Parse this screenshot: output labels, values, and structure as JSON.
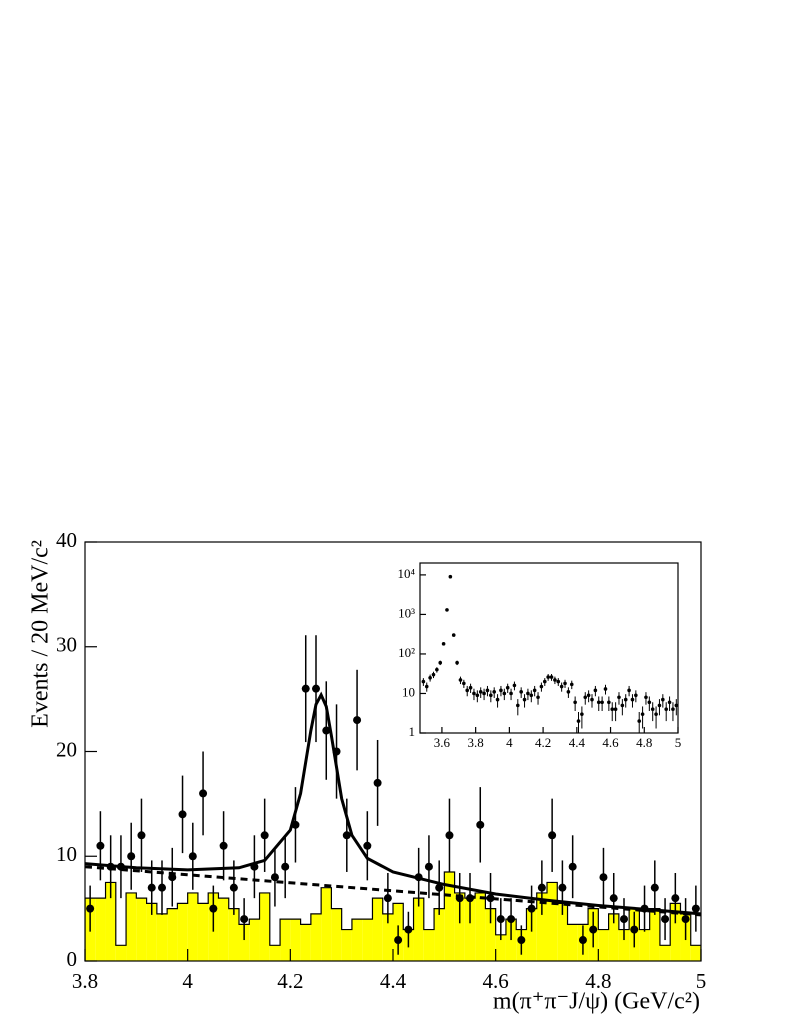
{
  "chart_data": [
    {
      "type": "errorbar",
      "x_label": "m(π⁺π⁻J/ψ) (GeV/c²)",
      "y_label": "Events / 20 MeV/c²",
      "xlim": [
        3.8,
        5.0
      ],
      "ylim": [
        0,
        40
      ],
      "xticks": [
        3.8,
        4,
        4.2,
        4.4,
        4.6,
        4.8,
        5
      ],
      "yticks": [
        0,
        10,
        20,
        30,
        40
      ],
      "x": [
        3.81,
        3.83,
        3.85,
        3.87,
        3.89,
        3.91,
        3.93,
        3.95,
        3.97,
        3.99,
        4.01,
        4.03,
        4.05,
        4.07,
        4.09,
        4.11,
        4.13,
        4.15,
        4.17,
        4.19,
        4.21,
        4.23,
        4.25,
        4.27,
        4.29,
        4.31,
        4.33,
        4.35,
        4.37,
        4.39,
        4.41,
        4.43,
        4.45,
        4.47,
        4.49,
        4.51,
        4.53,
        4.55,
        4.57,
        4.59,
        4.61,
        4.63,
        4.65,
        4.67,
        4.69,
        4.71,
        4.73,
        4.75,
        4.77,
        4.79,
        4.81,
        4.83,
        4.85,
        4.87,
        4.89,
        4.91,
        4.93,
        4.95,
        4.97,
        4.99
      ],
      "values": [
        5,
        11,
        9,
        9,
        10,
        12,
        7,
        7,
        8,
        14,
        10,
        16,
        5,
        11,
        7,
        4,
        9,
        12,
        8,
        9,
        13,
        26,
        26,
        22,
        20,
        12,
        23,
        11,
        17,
        6,
        2,
        3,
        8,
        9,
        7,
        12,
        6,
        6,
        13,
        6,
        4,
        4,
        2,
        5,
        7,
        12,
        7,
        9,
        2,
        3,
        8,
        6,
        4,
        3,
        5,
        7,
        4,
        6,
        4,
        5
      ],
      "errors": [
        2.2,
        3.3,
        3,
        3,
        3.2,
        3.5,
        2.6,
        2.6,
        2.8,
        3.7,
        3.2,
        4,
        2.2,
        3.3,
        2.6,
        2,
        3,
        3.5,
        2.8,
        3,
        3.6,
        5.1,
        5.1,
        4.7,
        4.5,
        3.5,
        4.8,
        3.3,
        4.1,
        2.4,
        1.4,
        1.7,
        2.8,
        3,
        2.6,
        3.5,
        2.4,
        2.4,
        3.6,
        2.4,
        2,
        2,
        1.4,
        2.2,
        2.6,
        3.5,
        2.6,
        3,
        1.4,
        1.7,
        2.8,
        2.4,
        2,
        1.7,
        2.2,
        2.6,
        2,
        2.4,
        2,
        2.2
      ],
      "color": "#000000",
      "background": {
        "type": "histogram",
        "color": "#ffff00",
        "bins": [
          3.8,
          3.82,
          3.84,
          3.86,
          3.88,
          3.9,
          3.92,
          3.94,
          3.96,
          3.98,
          4.0,
          4.02,
          4.04,
          4.06,
          4.08,
          4.1,
          4.12,
          4.14,
          4.16,
          4.18,
          4.2,
          4.22,
          4.24,
          4.26,
          4.28,
          4.3,
          4.32,
          4.34,
          4.36,
          4.38,
          4.4,
          4.42,
          4.44,
          4.46,
          4.48,
          4.5,
          4.52,
          4.54,
          4.56,
          4.58,
          4.6,
          4.62,
          4.64,
          4.66,
          4.68,
          4.7,
          4.72,
          4.74,
          4.76,
          4.78,
          4.8,
          4.82,
          4.84,
          4.86,
          4.88,
          4.9,
          4.92,
          4.94,
          4.96,
          4.98,
          5.0
        ],
        "counts": [
          6,
          6,
          7.5,
          1.5,
          6.5,
          6,
          5.5,
          4.5,
          5,
          5.5,
          6.5,
          5.5,
          6.5,
          6,
          5,
          3.5,
          4,
          6.5,
          1.5,
          4,
          4,
          3.5,
          4.5,
          7,
          5,
          3,
          4,
          4,
          6,
          4.5,
          5.5,
          3,
          6,
          3,
          5,
          8.5,
          6.5,
          6,
          6.5,
          5,
          2.5,
          4,
          3,
          5,
          6.5,
          7.5,
          5.5,
          3.5,
          3.5,
          5,
          3,
          4.5,
          3,
          5,
          3,
          5,
          1.5,
          5.5,
          4.5,
          1.5
        ]
      },
      "fits": [
        {
          "style": "solid",
          "x": [
            3.8,
            3.9,
            4.0,
            4.1,
            4.15,
            4.2,
            4.22,
            4.24,
            4.25,
            4.26,
            4.27,
            4.28,
            4.3,
            4.32,
            4.35,
            4.4,
            4.5,
            4.6,
            4.7,
            4.8,
            4.9,
            5.0
          ],
          "values": [
            9.3,
            8.9,
            8.7,
            8.9,
            9.6,
            12.5,
            16,
            22,
            24.5,
            25.4,
            24.3,
            21.5,
            15.5,
            12,
            9.8,
            8.5,
            7.3,
            6.4,
            5.8,
            5.3,
            4.9,
            4.5
          ]
        },
        {
          "style": "dashed",
          "x": [
            3.8,
            4.4,
            5.0
          ],
          "values": [
            9.0,
            6.7,
            4.4
          ]
        }
      ]
    },
    {
      "type": "errorbar",
      "log_y": true,
      "xlim": [
        3.47,
        5.0
      ],
      "ylim": [
        1,
        20000
      ],
      "xticks": [
        3.6,
        3.8,
        4,
        4.2,
        4.4,
        4.6,
        4.8,
        5
      ],
      "yticks": [
        1,
        10,
        {
          "value": 100,
          "label": "10²"
        },
        {
          "value": 1000,
          "label": "10³"
        },
        {
          "value": 10000,
          "label": "10⁴"
        }
      ],
      "x": [
        3.49,
        3.51,
        3.53,
        3.55,
        3.57,
        3.59,
        3.61,
        3.63,
        3.65,
        3.67,
        3.69,
        3.71,
        3.73,
        3.75,
        3.77,
        3.79,
        3.81,
        3.83,
        3.85,
        3.87,
        3.89,
        3.91,
        3.93,
        3.95,
        3.97,
        3.99,
        4.01,
        4.03,
        4.05,
        4.07,
        4.09,
        4.11,
        4.13,
        4.15,
        4.17,
        4.19,
        4.21,
        4.23,
        4.25,
        4.27,
        4.29,
        4.31,
        4.33,
        4.35,
        4.37,
        4.39,
        4.41,
        4.43,
        4.45,
        4.47,
        4.49,
        4.51,
        4.53,
        4.55,
        4.57,
        4.59,
        4.61,
        4.63,
        4.65,
        4.67,
        4.69,
        4.71,
        4.73,
        4.75,
        4.77,
        4.79,
        4.81,
        4.83,
        4.85,
        4.87,
        4.89,
        4.91,
        4.93,
        4.95,
        4.97,
        4.99
      ],
      "values": [
        20,
        15,
        25,
        30,
        40,
        60,
        180,
        1300,
        9000,
        300,
        60,
        22,
        18,
        12,
        14,
        10,
        9,
        11,
        10,
        12,
        9,
        11,
        7,
        12,
        10,
        14,
        10,
        16,
        5,
        11,
        7,
        10,
        9,
        12,
        8,
        15,
        20,
        26,
        26,
        22,
        20,
        15,
        18,
        11,
        17,
        6,
        2,
        3,
        8,
        9,
        7,
        12,
        6,
        6,
        13,
        6,
        4,
        4,
        8,
        5,
        7,
        12,
        7,
        9,
        2,
        3,
        8,
        6,
        4,
        3,
        5,
        7,
        4,
        6,
        4,
        5
      ],
      "errors": [
        4.5,
        3.9,
        5,
        5.5,
        6.3,
        7.7,
        13.4,
        36,
        95,
        17.3,
        7.7,
        4.7,
        4.2,
        3.5,
        3.7,
        3.2,
        3,
        3.3,
        3.2,
        3.5,
        3,
        3.3,
        2.6,
        3.5,
        3.2,
        3.7,
        3.2,
        4,
        2.2,
        3.3,
        2.6,
        3.2,
        3,
        3.5,
        2.8,
        3.9,
        4.5,
        5.1,
        5.1,
        4.7,
        4.5,
        3.9,
        4.2,
        3.3,
        4.1,
        2.4,
        1.4,
        1.7,
        2.8,
        3,
        2.6,
        3.5,
        2.4,
        2.4,
        3.6,
        2.4,
        2,
        2,
        2.8,
        2.2,
        2.6,
        3.5,
        2.6,
        3,
        1.4,
        1.7,
        2.8,
        2.4,
        2,
        1.7,
        2.2,
        2.6,
        2,
        2.4,
        2,
        2.2
      ],
      "color": "#000000"
    }
  ]
}
